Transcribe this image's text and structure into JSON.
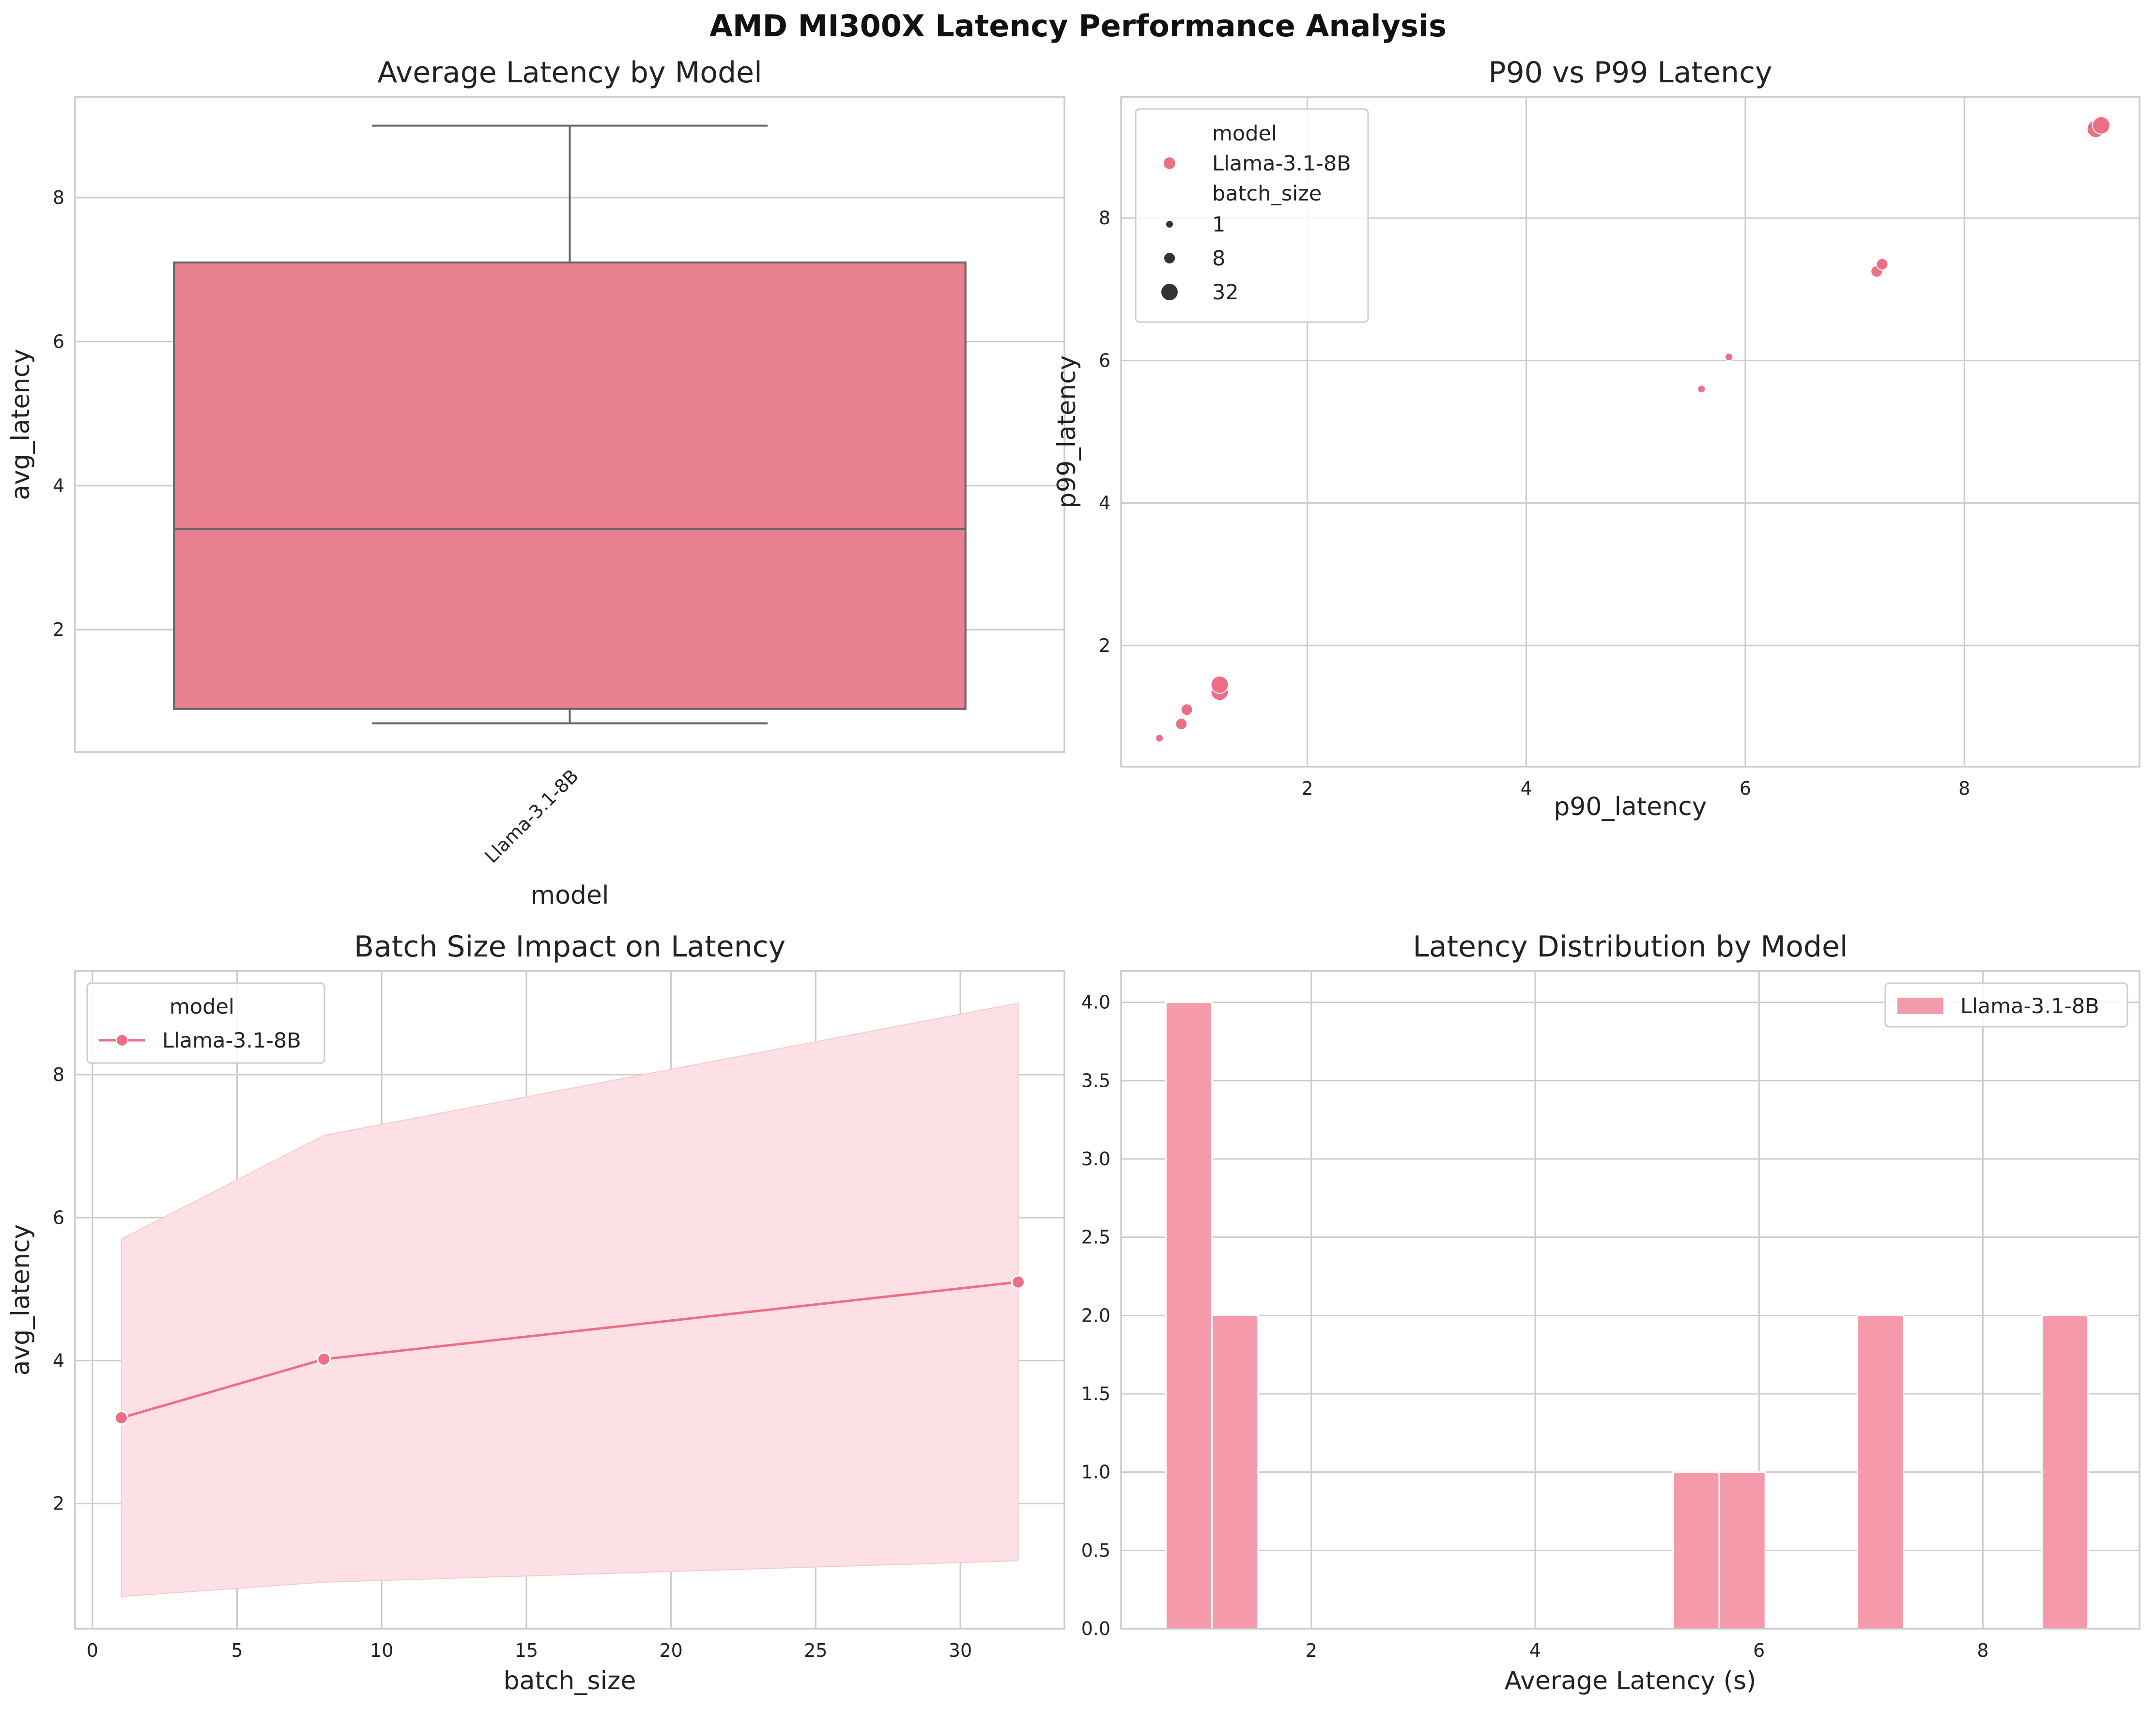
{
  "figure": {
    "suptitle": "AMD MI300X Latency Performance Analysis"
  },
  "colors": {
    "primary": "#e8808f",
    "series": "#ee6e85",
    "edge": "#666666",
    "grid": "#cccccc",
    "band": "#fde0e5",
    "hist": "#f59aab"
  },
  "chart_data": [
    {
      "type": "box",
      "title": "Average Latency by Model",
      "xlabel": "model",
      "ylabel": "avg_latency",
      "categories": [
        "Llama-3.1-8B"
      ],
      "box": {
        "whisker_low": 0.7,
        "q1": 0.9,
        "median": 3.4,
        "q3": 7.1,
        "whisker_high": 9.0
      },
      "ylim": [
        0.3,
        9.4
      ],
      "yticks": [
        2,
        4,
        6,
        8
      ],
      "grid": true
    },
    {
      "type": "scatter",
      "title": "P90 vs P99 Latency",
      "xlabel": "p90_latency",
      "ylabel": "p99_latency",
      "xlim": [
        0.3,
        9.6
      ],
      "ylim": [
        0.3,
        9.7
      ],
      "xticks": [
        2,
        4,
        6,
        8
      ],
      "yticks": [
        2,
        4,
        6,
        8
      ],
      "grid": true,
      "legend": {
        "placement": "top-left",
        "hue_title": "model",
        "hue_entries": [
          "Llama-3.1-8B"
        ],
        "size_title": "batch_size",
        "size_entries": [
          "1",
          "8",
          "32"
        ]
      },
      "points": [
        {
          "x": 0.65,
          "y": 0.7,
          "batch_size": 1
        },
        {
          "x": 0.85,
          "y": 0.9,
          "batch_size": 8
        },
        {
          "x": 0.9,
          "y": 1.1,
          "batch_size": 8
        },
        {
          "x": 1.2,
          "y": 1.35,
          "batch_size": 32
        },
        {
          "x": 1.2,
          "y": 1.45,
          "batch_size": 32
        },
        {
          "x": 5.6,
          "y": 5.6,
          "batch_size": 1
        },
        {
          "x": 5.85,
          "y": 6.05,
          "batch_size": 1
        },
        {
          "x": 7.2,
          "y": 7.25,
          "batch_size": 8
        },
        {
          "x": 7.25,
          "y": 7.35,
          "batch_size": 8
        },
        {
          "x": 9.2,
          "y": 9.25,
          "batch_size": 32
        },
        {
          "x": 9.25,
          "y": 9.3,
          "batch_size": 32
        }
      ]
    },
    {
      "type": "line",
      "title": "Batch Size Impact on Latency",
      "xlabel": "batch_size",
      "ylabel": "avg_latency",
      "xlim": [
        -0.6,
        33.6
      ],
      "ylim": [
        0.25,
        9.45
      ],
      "xticks": [
        0,
        5,
        10,
        15,
        20,
        25,
        30
      ],
      "yticks": [
        2,
        4,
        6,
        8
      ],
      "grid": true,
      "legend": {
        "placement": "top-left",
        "title": "model",
        "entries": [
          "Llama-3.1-8B"
        ]
      },
      "series": [
        {
          "name": "Llama-3.1-8B",
          "x": [
            1,
            8,
            32
          ],
          "y": [
            3.2,
            4.02,
            5.1
          ],
          "ci_low": [
            0.7,
            0.9,
            1.2
          ],
          "ci_high": [
            5.7,
            7.15,
            9.0
          ]
        }
      ]
    },
    {
      "type": "histogram",
      "title": "Latency Distribution by Model",
      "xlabel": "Average Latency (s)",
      "ylabel": "",
      "xlim": [
        0.3,
        9.4
      ],
      "ylim": [
        0,
        4.2
      ],
      "xticks": [
        2,
        4,
        6,
        8
      ],
      "yticks": [
        "0.0",
        "0.5",
        "1.0",
        "1.5",
        "2.0",
        "2.5",
        "3.0",
        "3.5",
        "4.0"
      ],
      "grid": true,
      "legend": {
        "placement": "top-right",
        "entries": [
          "Llama-3.1-8B"
        ]
      },
      "bin_width": 0.412,
      "bins": [
        {
          "start": 0.7,
          "count": 4
        },
        {
          "start": 1.112,
          "count": 2
        },
        {
          "start": 5.232,
          "count": 1
        },
        {
          "start": 5.644,
          "count": 1
        },
        {
          "start": 6.88,
          "count": 2
        },
        {
          "start": 8.528,
          "count": 2
        }
      ]
    }
  ]
}
